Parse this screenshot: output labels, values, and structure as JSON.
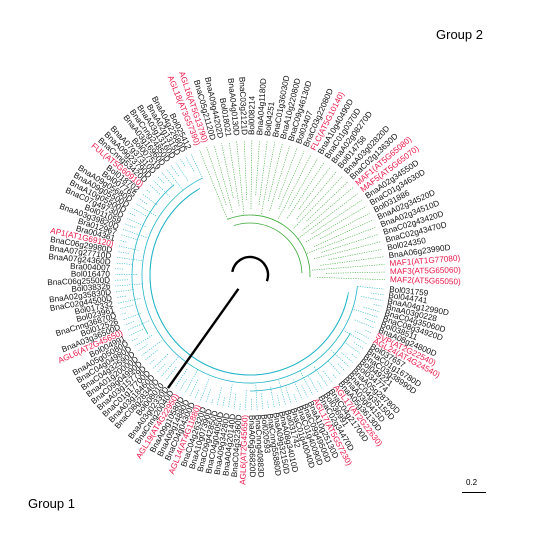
{
  "groups": {
    "group2": "Group 2",
    "group1": "Group 1"
  },
  "scale_bar": "0.2",
  "colors": {
    "group1_branch": "#23b5c7",
    "group2_branch": "#3aa935",
    "highlight": "#e8174a",
    "root": "#000000"
  },
  "group2_leaves": [
    {
      "label": "AGL18(AT3G57390)",
      "red": true
    },
    {
      "label": "AGL16(AT5G13790)",
      "red": true
    },
    {
      "label": "BnaC05g21120D",
      "red": false
    },
    {
      "label": "BnaA09g44202D",
      "red": false
    },
    {
      "label": "Bol018021",
      "red": false
    },
    {
      "label": "BnaA04g0130D",
      "red": false
    },
    {
      "label": "BnaC03g2121D",
      "red": false
    },
    {
      "label": "Bol008214",
      "red": false
    },
    {
      "label": "BnaA04g1180D",
      "red": false
    },
    {
      "label": "Bol04251",
      "red": false
    },
    {
      "label": "BnaC01g36030D",
      "red": false
    },
    {
      "label": "BnaA10g22080D",
      "red": false
    },
    {
      "label": "BnaC09g46130D",
      "red": false
    },
    {
      "label": "Bol03407",
      "red": false
    },
    {
      "label": "BnaC03g22080D",
      "red": false
    },
    {
      "label": "FLC(AT5G10140)",
      "red": true
    },
    {
      "label": "BnaA10g40490D",
      "red": false
    },
    {
      "label": "BnaC01g0370D",
      "red": false
    },
    {
      "label": "BnaA02g08270D",
      "red": false
    },
    {
      "label": "Bol014758",
      "red": false
    },
    {
      "label": "BnaA03g02820D",
      "red": false
    },
    {
      "label": "BnaC02g13630D",
      "red": false
    },
    {
      "label": "MAF1(AT5G65080)",
      "red": true
    },
    {
      "label": "MAF5(AT5G65070)",
      "red": true
    },
    {
      "label": "BnaA02g34550D",
      "red": false
    },
    {
      "label": "BnaC01g34630D",
      "red": false
    },
    {
      "label": "Bol031886",
      "red": false
    },
    {
      "label": "BnaA02g34520D",
      "red": false
    },
    {
      "label": "BnaA02g34510D",
      "red": false
    },
    {
      "label": "BnaC02g43420D",
      "red": false
    },
    {
      "label": "BnaC02g43470D",
      "red": false
    },
    {
      "label": "Bol024350",
      "red": false
    },
    {
      "label": "BnaA06g23990D",
      "red": false
    },
    {
      "label": "MAF1(AT1G77080)",
      "red": true
    },
    {
      "label": "MAF3(AT5G65060)",
      "red": true
    },
    {
      "label": "MAF2(AT5G65050)",
      "red": true
    }
  ],
  "group1_leaves": [
    {
      "label": "Bol031759",
      "red": false
    },
    {
      "label": "Bol044741",
      "red": false
    },
    {
      "label": "BnaA04g12990D",
      "red": false
    },
    {
      "label": "BnaA03g0228",
      "red": false
    },
    {
      "label": "BnaC04g35060D",
      "red": false
    },
    {
      "label": "BnaC08g34920D",
      "red": false
    },
    {
      "label": "Bol038511",
      "red": false
    },
    {
      "label": "BnaA08g24800D",
      "red": false
    },
    {
      "label": "SVP(AT2G22540)",
      "red": true
    },
    {
      "label": "AGL24(AT4G24540)",
      "red": true
    },
    {
      "label": "Bol037657",
      "red": false
    },
    {
      "label": "BnaC01g16780D",
      "red": false
    },
    {
      "label": "BnaC03g38990D",
      "red": false
    },
    {
      "label": "Bol049221",
      "red": false
    },
    {
      "label": "Bol034774",
      "red": false
    },
    {
      "label": "BnaA05g28780D",
      "red": false
    },
    {
      "label": "BnaC04g35150D",
      "red": false
    },
    {
      "label": "BnaA03g0415D",
      "red": false
    },
    {
      "label": "BnaA05g36130D",
      "red": false
    },
    {
      "label": "AGL17(AT2G22630)",
      "red": true
    },
    {
      "label": "BnaC04g21700D",
      "red": false
    },
    {
      "label": "Bol036991",
      "red": false
    },
    {
      "label": "BnaC02g34470D",
      "red": false
    },
    {
      "label": "AGL17(AT5G57230)",
      "red": true
    },
    {
      "label": "BnaA10g25130D",
      "red": false
    },
    {
      "label": "BnaC09g49500D",
      "red": false
    },
    {
      "label": "BnaC01g40090D",
      "red": false
    },
    {
      "label": "BnaC01g40040D",
      "red": false
    },
    {
      "label": "Bol031742",
      "red": false
    },
    {
      "label": "BnaA08g34010D",
      "red": false
    },
    {
      "label": "BnaA09g32150D",
      "red": false
    },
    {
      "label": "BnaCnng55880D",
      "red": false
    },
    {
      "label": "Bol020593",
      "red": false
    },
    {
      "label": "BnaCnng40883D",
      "red": false
    },
    {
      "label": "BnaA06g36820D",
      "red": false
    },
    {
      "label": "AGL6(AT2G45650)",
      "red": true
    },
    {
      "label": "BnaC04g32360D",
      "red": false
    },
    {
      "label": "BnaA04g20140D",
      "red": false
    },
    {
      "label": "BnaA09g34280D",
      "red": false
    },
    {
      "label": "BnaC04g04050D",
      "red": false
    },
    {
      "label": "BnaC09g42850D",
      "red": false
    },
    {
      "label": "BnaA10g07390D",
      "red": false
    },
    {
      "label": "BnaC04g26320D",
      "red": false
    },
    {
      "label": "AGL14(AT4G11880)",
      "red": true
    },
    {
      "label": "BnaC04g04300D",
      "red": false
    },
    {
      "label": "BnaA09g14880D",
      "red": false
    },
    {
      "label": "BnaA09g10580D",
      "red": false
    },
    {
      "label": "AGL19(AT4G22950)",
      "red": true
    },
    {
      "label": "BnaCnng20040D",
      "red": false
    },
    {
      "label": "BnaA03g02330D",
      "red": false
    },
    {
      "label": "Bol008010",
      "red": false
    },
    {
      "label": "BnaC08g28340D",
      "red": false
    },
    {
      "label": "BnaA03g18460D",
      "red": false
    },
    {
      "label": "BnaC01g17700D",
      "red": false
    },
    {
      "label": "BnaA03g15779D",
      "red": false
    },
    {
      "label": "BnaC09g04990D",
      "red": false
    },
    {
      "label": "BnaA01g20000D",
      "red": false
    },
    {
      "label": "BnaC04g32590D",
      "red": false
    },
    {
      "label": "BnaC04g04980D",
      "red": false
    },
    {
      "label": "BnaA05g05080D",
      "red": false
    },
    {
      "label": "Bol004991",
      "red": false
    },
    {
      "label": "AGL6(AT2G45650)",
      "red": true
    },
    {
      "label": "BnaA03g36500D",
      "red": false
    },
    {
      "label": "Bol012526",
      "red": false
    },
    {
      "label": "BnaCnng36870D",
      "red": false
    },
    {
      "label": "Bol023961",
      "red": false
    },
    {
      "label": "Bol017332",
      "red": false
    },
    {
      "label": "BnaC02g44500D",
      "red": false
    },
    {
      "label": "BnaA02g35830D",
      "red": false
    },
    {
      "label": "Bol038326",
      "red": false
    },
    {
      "label": "BnaC06g25500D",
      "red": false
    },
    {
      "label": "Bol016470",
      "red": false
    },
    {
      "label": "Bra004007",
      "red": false
    },
    {
      "label": "BnaA07g24360D",
      "red": false
    },
    {
      "label": "BnaA07g27710D",
      "red": false
    },
    {
      "label": "BnaC06g29980D",
      "red": false
    },
    {
      "label": "AP1(AT1G69120)",
      "red": true
    },
    {
      "label": "Bra004361",
      "red": false
    },
    {
      "label": "Bra012967",
      "red": false
    },
    {
      "label": "BnaA03g39820D",
      "red": false
    },
    {
      "label": "Bol011059",
      "red": false
    },
    {
      "label": "BnaC07g49730D",
      "red": false
    },
    {
      "label": "BnaA10g05500D",
      "red": false
    },
    {
      "label": "BnaA09g05500D",
      "red": false
    },
    {
      "label": "BnaA09g05680D",
      "red": false
    },
    {
      "label": "Bol007765",
      "red": false
    },
    {
      "label": "Bol018702",
      "red": false
    },
    {
      "label": "FUL(AT5G60910)",
      "red": true
    },
    {
      "label": "BnaCnng53420D",
      "red": false
    },
    {
      "label": "BnaA09g23790D",
      "red": false
    },
    {
      "label": "BnaA07g37310D",
      "red": false
    },
    {
      "label": "Bol007519",
      "red": false
    },
    {
      "label": "BnaA03g16960D",
      "red": false
    },
    {
      "label": "BnaCnng24850D",
      "red": false
    },
    {
      "label": "BnaA03g13160D",
      "red": false
    },
    {
      "label": "BnaA02g1315D",
      "red": false
    },
    {
      "label": "BnaA04g22680D",
      "red": false
    },
    {
      "label": "Bol025412",
      "red": false
    }
  ]
}
